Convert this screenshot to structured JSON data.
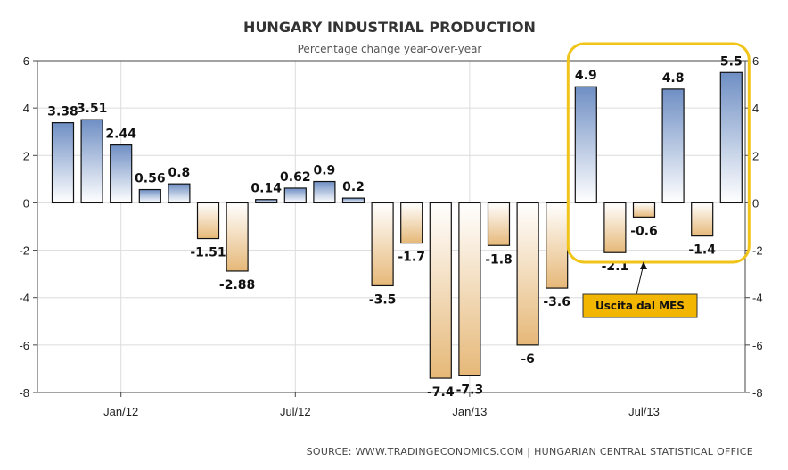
{
  "chart_data": {
    "type": "bar",
    "title": "HUNGARY INDUSTRIAL PRODUCTION",
    "subtitle": "Percentage change year-over-year",
    "source": "SOURCE:  WWW.TRADINGECONOMICS.COM  |  HUNGARIAN CENTRAL STATISTICAL OFFICE",
    "ylim": [
      -8,
      6
    ],
    "y_ticks": [
      6,
      4,
      2,
      0,
      -2,
      -4,
      -6,
      -8
    ],
    "x_tick_labels": [
      {
        "label": "Jan/12",
        "index": 2
      },
      {
        "label": "Jul/12",
        "index": 8
      },
      {
        "label": "Jan/13",
        "index": 14
      },
      {
        "label": "Jul/13",
        "index": 20
      }
    ],
    "grid": true,
    "positive_color_top": "#6f8fc4",
    "positive_color_bottom": "#ffffff",
    "negative_color_top": "#ffffff",
    "negative_color_bottom": "#e6b878",
    "values": [
      3.38,
      3.51,
      2.44,
      0.56,
      0.8,
      -1.51,
      -2.88,
      0.14,
      0.62,
      0.9,
      0.2,
      -3.5,
      -1.7,
      -7.4,
      -7.3,
      -1.8,
      -6,
      -3.6,
      4.9,
      -2.1,
      -0.6,
      4.8,
      -1.4,
      5.5
    ],
    "data_labels": [
      "3.38",
      "3.51",
      "2.44",
      "0.56",
      "0.8",
      "-1.51",
      "-2.88",
      "0.14",
      "0.62",
      "0.9",
      "0.2",
      "-3.5",
      "-1.7",
      "-7.4",
      "-7.3",
      "-1.8",
      "-6",
      "-3.6",
      "4.9",
      "-2.1",
      "-0.6",
      "4.8",
      "-1.4",
      "5.5"
    ],
    "annotation": {
      "text": "Uscita dal MES",
      "highlight_from_index": 18,
      "highlight_to_index": 23,
      "highlight_color": "#f0c419",
      "box_fill": "#f2b600"
    }
  }
}
